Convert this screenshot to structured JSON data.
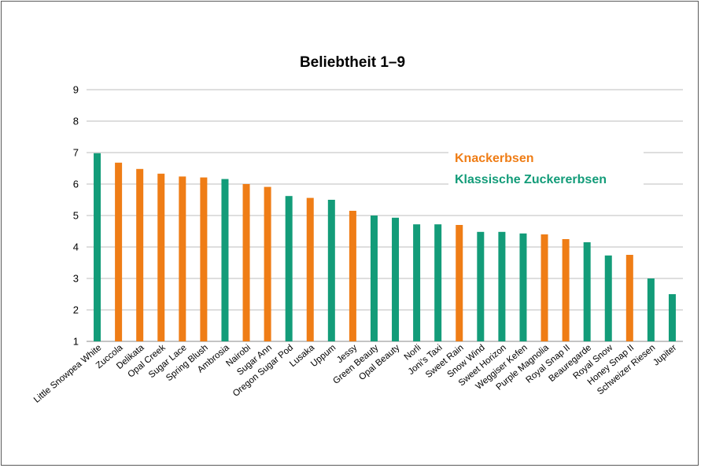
{
  "chart_data": {
    "type": "bar",
    "title": "Beliebtheit 1–9",
    "ylim": [
      1,
      9
    ],
    "yticks": [
      1,
      2,
      3,
      4,
      5,
      6,
      7,
      8,
      9
    ],
    "grid": true,
    "legend_placement": "top-right",
    "legend": [
      {
        "label": "Knackerbsen",
        "group": "knacker",
        "color": "#ef7d16"
      },
      {
        "label": "Klassische Zuckererbsen",
        "group": "klassisch",
        "color": "#139c79"
      }
    ],
    "categories": [
      "Little Snowpea White",
      "Zuccola",
      "Delikata",
      "Opal Creek",
      "Sugar Lace",
      "Spring Blush",
      "Ambrosia",
      "Nairobi",
      "Sugar Ann",
      "Oregon Sugar Pod",
      "Lusaka",
      "Uppum",
      "Jessy",
      "Green Beauty",
      "Opal Beauty",
      "Norli",
      "Joni's Taxi",
      "Sweet Rain",
      "Snow Wind",
      "Sweet Horizon",
      "Weggiser Kefen",
      "Purple Magnolia",
      "Royal Snap II",
      "Beauregarde",
      "Royal Snow",
      "Honey Snap II",
      "Schweizer Riesen",
      "Jupiter"
    ],
    "values": [
      6.98,
      6.68,
      6.48,
      6.33,
      6.24,
      6.21,
      6.16,
      6.0,
      5.91,
      5.62,
      5.56,
      5.5,
      5.15,
      5.0,
      4.93,
      4.72,
      4.72,
      4.7,
      4.48,
      4.48,
      4.43,
      4.4,
      4.25,
      4.15,
      3.73,
      3.75,
      3.0,
      2.5
    ],
    "groups": [
      "klassisch",
      "knacker",
      "knacker",
      "knacker",
      "knacker",
      "knacker",
      "klassisch",
      "knacker",
      "knacker",
      "klassisch",
      "knacker",
      "klassisch",
      "knacker",
      "klassisch",
      "klassisch",
      "klassisch",
      "klassisch",
      "knacker",
      "klassisch",
      "klassisch",
      "klassisch",
      "knacker",
      "knacker",
      "klassisch",
      "klassisch",
      "knacker",
      "klassisch",
      "klassisch"
    ]
  }
}
